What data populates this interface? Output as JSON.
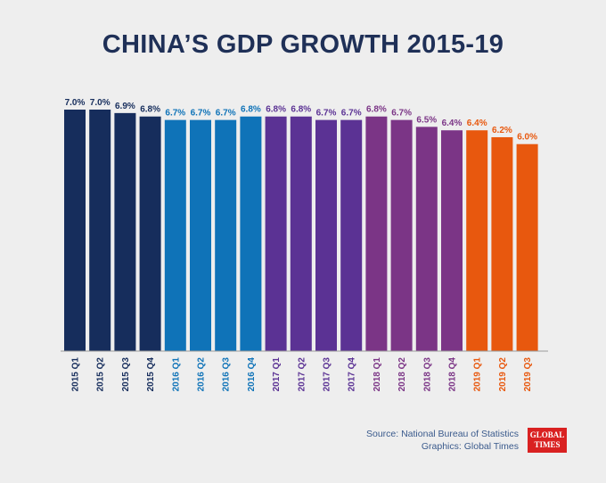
{
  "chart_data": {
    "type": "bar",
    "title": "CHINA’S GDP GROWTH 2015-19",
    "xlabel": "",
    "ylabel": "",
    "ylim": [
      0,
      7.0
    ],
    "grid": false,
    "categories": [
      "2015 Q1",
      "2015 Q2",
      "2015 Q3",
      "2015 Q4",
      "2016 Q1",
      "2016 Q2",
      "2016 Q3",
      "2016 Q4",
      "2017 Q1",
      "2017 Q2",
      "2017 Q3",
      "2017 Q4",
      "2018 Q1",
      "2018 Q2",
      "2018 Q3",
      "2018 Q4",
      "2019 Q1",
      "2019 Q2",
      "2019 Q3"
    ],
    "values": [
      7.0,
      7.0,
      6.9,
      6.8,
      6.7,
      6.7,
      6.7,
      6.8,
      6.8,
      6.8,
      6.7,
      6.7,
      6.8,
      6.7,
      6.5,
      6.4,
      6.4,
      6.2,
      6.0
    ],
    "value_labels": [
      "7.0%",
      "7.0%",
      "6.9%",
      "6.8%",
      "6.7%",
      "6.7%",
      "6.7%",
      "6.8%",
      "6.8%",
      "6.8%",
      "6.7%",
      "6.7%",
      "6.8%",
      "6.7%",
      "6.5%",
      "6.4%",
      "6.4%",
      "6.2%",
      "6.0%"
    ],
    "year_colors": {
      "2015": "#162d5c",
      "2016": "#0f73b8",
      "2017": "#5b3294",
      "2018": "#7b3586",
      "2019": "#e8580e"
    },
    "label_colors": {
      "2015": "#162d5c",
      "2016": "#0f73b8",
      "2017": "#5b3294",
      "2018": "#7b3586",
      "2019": "#e8580e"
    }
  },
  "footer": {
    "source": "Source: National Bureau of Statistics",
    "graphics": "Graphics: Global Times",
    "logo_line1": "GLOBAL",
    "logo_line2": "TIMES"
  }
}
